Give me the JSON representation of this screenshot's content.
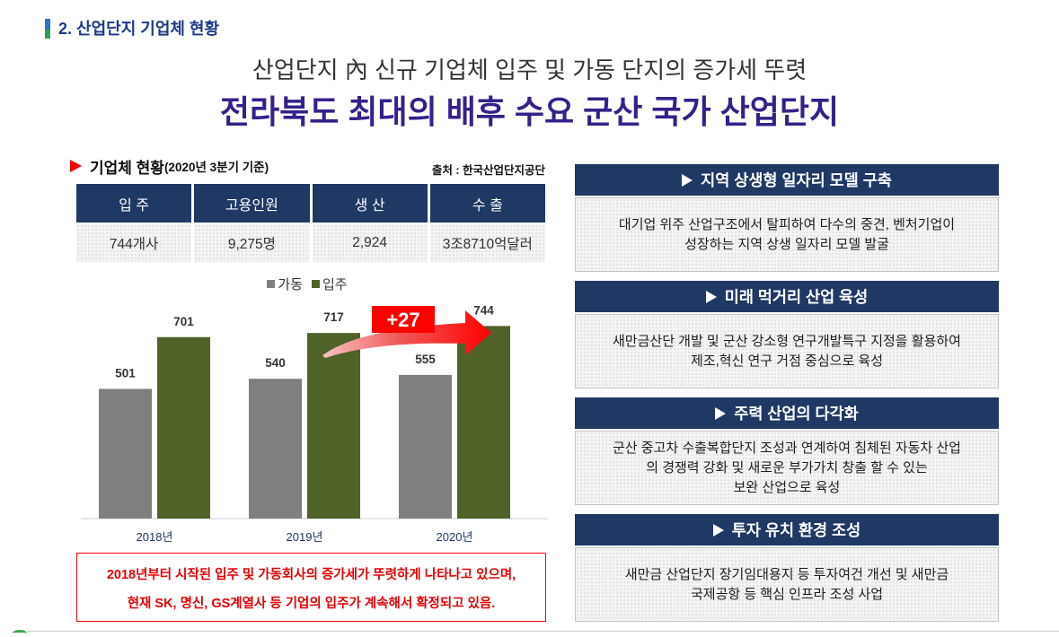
{
  "section_heading": "2. 산업단지 기업체 현황",
  "title": {
    "subtitle": "산업단지 內 신규 기업체 입주 및 가동 단지의 증가세 뚜렷",
    "main": "전라북도 최대의 배후 수요 군산 국가 산업단지"
  },
  "status": {
    "bullet_icon": "triangle-right-icon",
    "title": "기업체 현황",
    "note": "(2020년 3분기 기준)",
    "source": "출처 : 한국산업단지공단"
  },
  "stats_table": {
    "headers": [
      "입 주",
      "고용인원",
      "생 산",
      "수 출"
    ],
    "values": [
      "744개사",
      "9,275명",
      "2,924",
      "3조8710억달러"
    ]
  },
  "chart_data": {
    "type": "bar",
    "categories": [
      "2018년",
      "2019년",
      "2020년"
    ],
    "series": [
      {
        "name": "가동",
        "values": [
          501,
          540,
          555
        ],
        "color": "#7f7f7f"
      },
      {
        "name": "입주",
        "values": [
          701,
          717,
          744
        ],
        "color": "#4f6228"
      }
    ],
    "data_labels": true,
    "legend": "top-center",
    "ylim": [
      0,
      800
    ],
    "grid": false,
    "annotation": {
      "text": "+27",
      "color": "#ff0000"
    }
  },
  "summary": {
    "lines": [
      "2018년부터 시작된 입주 및 가동회사의 증가세가 뚜렷하게 나타나고 있으며,",
      "현재 SK, 명신, GS계열사 등 기업의 입주가 계속해서 확정되고 있음."
    ]
  },
  "strategies": [
    {
      "title": "지역 상생형 일자리 모델 구축",
      "lines": [
        "대기업 위주 산업구조에서 탈피하여 다수의 중견, 벤처기업이",
        "성장하는 지역 상생 일자리 모델 발굴"
      ]
    },
    {
      "title": "미래 먹거리 산업 육성",
      "lines": [
        "새만금산단 개발 및 군산 강소형 연구개발특구 지정을 활용하여",
        "제조,혁신 연구 거점 중심으로 육성"
      ]
    },
    {
      "title": "주력 산업의 다각화",
      "lines": [
        "군산 중고차 수출복합단지 조성과 연계하여 침체된 자동차 산업",
        "의 경쟁력 강화 및 새로운 부가가치 창출 할 수 있는",
        "보완 산업으로 육성"
      ]
    },
    {
      "title": "투자 유치 환경 조성",
      "lines": [
        "새만금 산업단지 장기임대용지 등 투자여건 개선 및 새만금",
        "국제공항 등 핵심 인프라 조성 사업"
      ]
    }
  ],
  "colors": {
    "navy": "#1f3864",
    "title_purple": "#35208c",
    "accent_red": "#ff0000",
    "heading_blue": "#1d3a8a"
  }
}
